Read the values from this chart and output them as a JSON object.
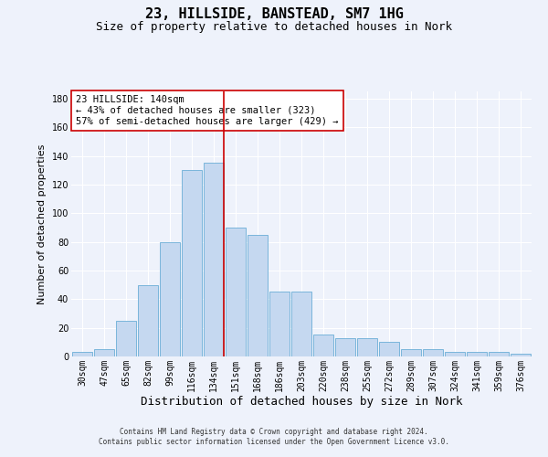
{
  "title": "23, HILLSIDE, BANSTEAD, SM7 1HG",
  "subtitle": "Size of property relative to detached houses in Nork",
  "xlabel": "Distribution of detached houses by size in Nork",
  "ylabel": "Number of detached properties",
  "bar_labels": [
    "30sqm",
    "47sqm",
    "65sqm",
    "82sqm",
    "99sqm",
    "116sqm",
    "134sqm",
    "151sqm",
    "168sqm",
    "186sqm",
    "203sqm",
    "220sqm",
    "238sqm",
    "255sqm",
    "272sqm",
    "289sqm",
    "307sqm",
    "324sqm",
    "341sqm",
    "359sqm",
    "376sqm"
  ],
  "bar_values": [
    3,
    5,
    25,
    50,
    80,
    130,
    135,
    90,
    85,
    45,
    45,
    15,
    13,
    13,
    10,
    5,
    5,
    3,
    3,
    3,
    2
  ],
  "bar_color": "#c5d8f0",
  "bar_edge_color": "#6baed6",
  "background_color": "#eef2fb",
  "grid_color": "#ffffff",
  "ylim": [
    0,
    185
  ],
  "yticks": [
    0,
    20,
    40,
    60,
    80,
    100,
    120,
    140,
    160,
    180
  ],
  "vline_x_index": 6,
  "vline_color": "#cc0000",
  "annotation_text": "23 HILLSIDE: 140sqm\n← 43% of detached houses are smaller (323)\n57% of semi-detached houses are larger (429) →",
  "annotation_box_color": "#ffffff",
  "annotation_box_edge": "#cc0000",
  "footer_line1": "Contains HM Land Registry data © Crown copyright and database right 2024.",
  "footer_line2": "Contains public sector information licensed under the Open Government Licence v3.0.",
  "title_fontsize": 11,
  "subtitle_fontsize": 9,
  "tick_fontsize": 7,
  "ylabel_fontsize": 8,
  "xlabel_fontsize": 9,
  "annotation_fontsize": 7.5,
  "footer_fontsize": 5.5
}
